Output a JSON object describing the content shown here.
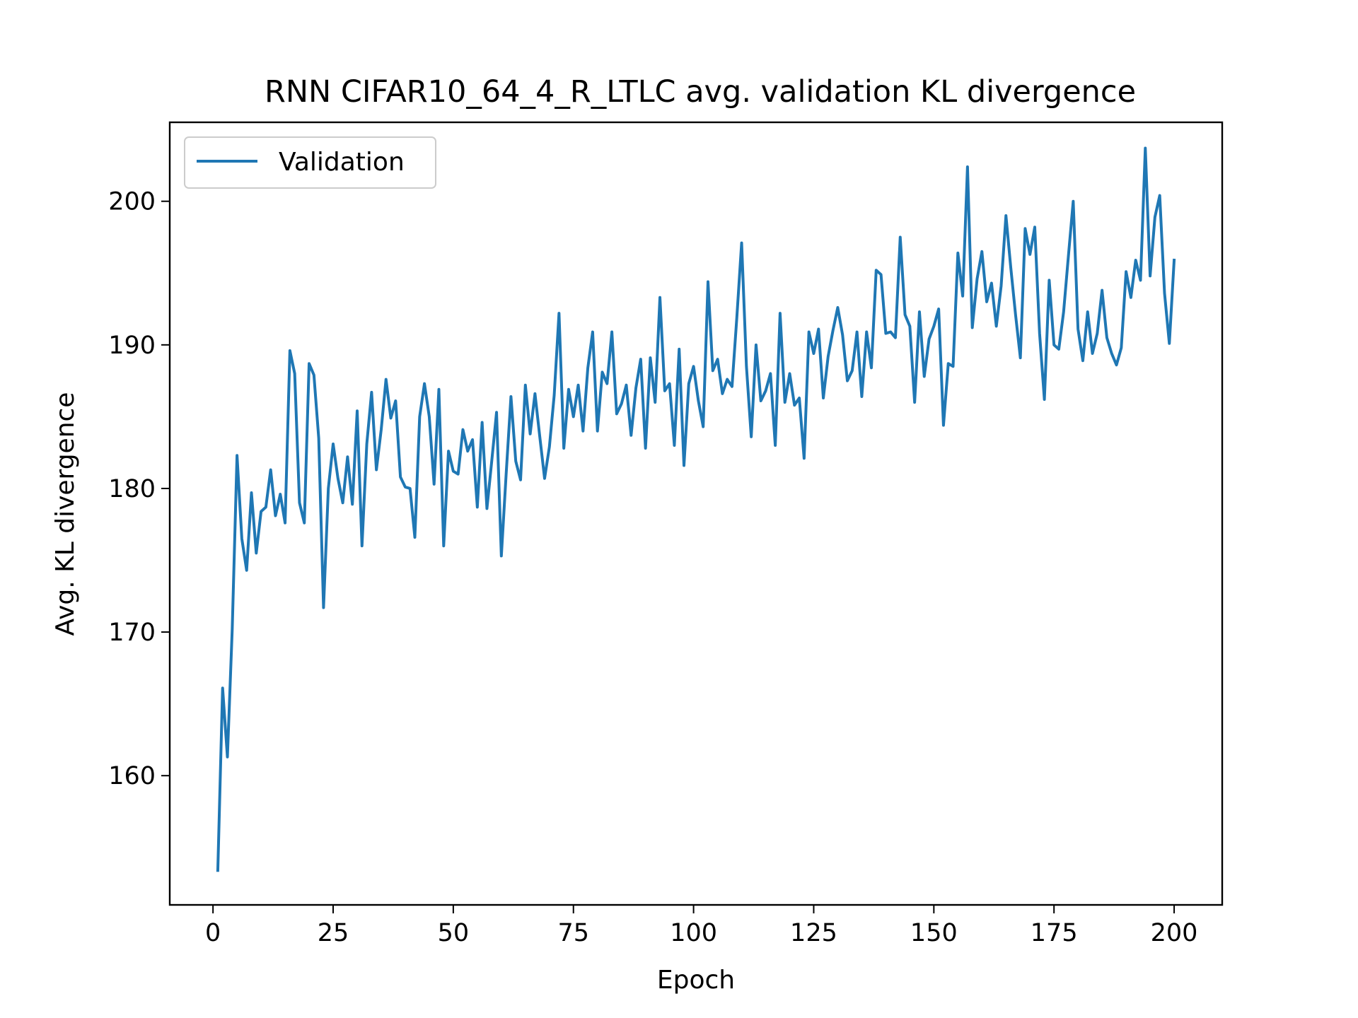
{
  "chart_data": {
    "type": "line",
    "title": "RNN CIFAR10_64_4_R_LTLC avg. validation KL divergence",
    "xlabel": "Epoch",
    "ylabel": "Avg. KL divergence",
    "xlim": [
      -9,
      210
    ],
    "ylim": [
      151,
      205.5
    ],
    "xticks": [
      0,
      25,
      50,
      75,
      100,
      125,
      150,
      175,
      200
    ],
    "xtick_labels": [
      "0",
      "25",
      "50",
      "75",
      "100",
      "125",
      "150",
      "175",
      "200"
    ],
    "yticks": [
      160,
      170,
      180,
      190,
      200
    ],
    "ytick_labels": [
      "160",
      "170",
      "180",
      "190",
      "200"
    ],
    "legend": "upper-left",
    "grid": false,
    "series": [
      {
        "name": "Validation",
        "color": "#1f77b4",
        "x_start": 1,
        "x_step": 1,
        "values": [
          153.4,
          166.1,
          161.3,
          170.2,
          182.3,
          176.5,
          174.3,
          179.7,
          175.5,
          178.4,
          178.7,
          181.3,
          178.1,
          179.6,
          177.6,
          189.6,
          188.0,
          179.0,
          177.6,
          188.7,
          187.9,
          183.5,
          171.7,
          180.0,
          183.1,
          180.7,
          179.0,
          182.2,
          178.9,
          185.4,
          176.0,
          183.1,
          186.7,
          181.3,
          184.1,
          187.6,
          184.9,
          186.1,
          180.8,
          180.1,
          180.0,
          176.6,
          185.0,
          187.3,
          185.0,
          180.3,
          186.9,
          176.0,
          182.6,
          181.2,
          181.0,
          184.1,
          182.6,
          183.4,
          178.7,
          184.6,
          178.6,
          181.9,
          185.3,
          175.3,
          181.0,
          186.4,
          181.9,
          180.6,
          187.2,
          183.8,
          186.6,
          183.6,
          180.7,
          182.9,
          186.5,
          192.2,
          182.8,
          186.9,
          185.0,
          187.2,
          184.0,
          188.4,
          190.9,
          184.0,
          188.1,
          187.3,
          190.9,
          185.2,
          185.9,
          187.2,
          183.7,
          187.0,
          189.0,
          182.8,
          189.1,
          186.0,
          193.3,
          186.8,
          187.3,
          183.0,
          189.7,
          181.6,
          187.3,
          188.5,
          186.1,
          184.3,
          194.4,
          188.2,
          189.0,
          186.6,
          187.6,
          187.1,
          191.9,
          197.1,
          188.5,
          183.6,
          190.0,
          186.1,
          186.8,
          188.0,
          183.0,
          192.2,
          186.0,
          188.0,
          185.8,
          186.3,
          182.1,
          190.9,
          189.4,
          191.1,
          186.3,
          189.2,
          191.0,
          192.6,
          190.7,
          187.5,
          188.2,
          190.9,
          186.4,
          190.9,
          188.4,
          195.2,
          194.9,
          190.8,
          190.9,
          190.5,
          197.5,
          192.1,
          191.3,
          186.0,
          192.3,
          187.8,
          190.4,
          191.3,
          192.5,
          184.4,
          188.7,
          188.5,
          196.4,
          193.4,
          202.4,
          191.2,
          194.6,
          196.5,
          193.0,
          194.3,
          191.3,
          194.1,
          199.0,
          195.4,
          192.1,
          189.1,
          198.1,
          196.3,
          198.2,
          190.8,
          186.2,
          194.5,
          190.0,
          189.7,
          192.3,
          196.2,
          200.0,
          191.1,
          188.9,
          192.3,
          189.4,
          190.8,
          193.8,
          190.5,
          189.4,
          188.6,
          189.8,
          195.1,
          193.3,
          195.9,
          194.5,
          203.7,
          194.8,
          198.9,
          200.4,
          193.6,
          190.1,
          195.9
        ]
      }
    ]
  }
}
